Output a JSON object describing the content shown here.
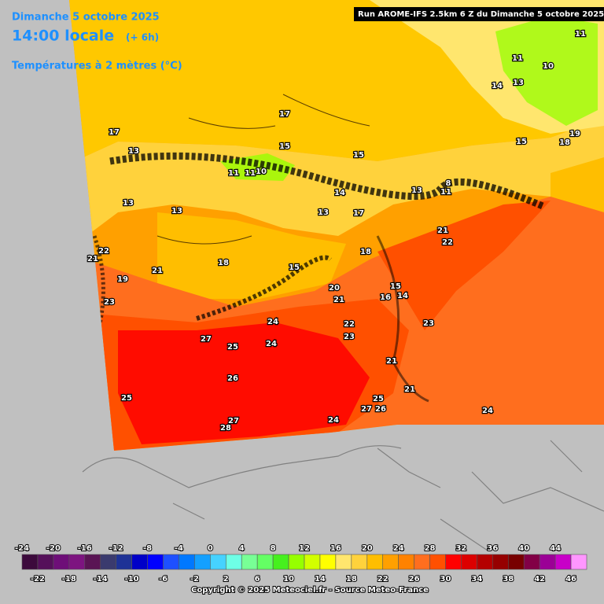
{
  "header": {
    "date": "Dimanche 5 octobre 2025",
    "time": "14:00 locale",
    "offset": "(+ 6h)",
    "parameter": "Températures à 2 mètres (°C)",
    "run": "Run AROME-IFS 2.5km 6 Z du Dimanche 5 octobre 2025"
  },
  "map_labels": [
    17,
    17,
    15,
    15,
    13,
    11,
    11,
    10,
    13,
    13,
    14,
    13,
    11,
    8,
    13,
    17,
    21,
    22,
    18,
    18,
    21,
    22,
    19,
    21,
    15,
    20,
    21,
    15,
    14,
    16,
    23,
    24,
    22,
    23,
    23,
    27,
    25,
    24,
    21,
    26,
    25,
    25,
    21,
    27,
    26,
    27,
    28,
    24,
    24,
    11,
    10,
    11,
    14,
    13,
    15,
    18,
    19
  ],
  "scale": {
    "top_labels": [
      -24,
      -20,
      -16,
      -12,
      -8,
      -4,
      0,
      4,
      8,
      12,
      16,
      20,
      24,
      28,
      32,
      36,
      40,
      44
    ],
    "bottom_labels": [
      -22,
      -18,
      -14,
      -10,
      -6,
      -2,
      2,
      6,
      10,
      14,
      18,
      22,
      26,
      30,
      34,
      38,
      42,
      46
    ],
    "colors": [
      "#3c0a3c",
      "#55105a",
      "#6e0e78",
      "#7d1480",
      "#5a1454",
      "#3a3a6e",
      "#1e3296",
      "#0000c8",
      "#0000ff",
      "#1e50ff",
      "#0078ff",
      "#14a0ff",
      "#46d2ff",
      "#6effe6",
      "#78ff96",
      "#64ff64",
      "#46f01e",
      "#96ff00",
      "#d2ff00",
      "#ffff00",
      "#ffe66e",
      "#ffd23c",
      "#ffbe00",
      "#ffa000",
      "#ff8200",
      "#ff6e1e",
      "#ff5000",
      "#ff0000",
      "#dc0000",
      "#b40000",
      "#960000",
      "#780000",
      "#820046",
      "#9b0096",
      "#c800c8",
      "#ff96ff"
    ]
  },
  "footer": {
    "copyright": "Copyright © 2025 Meteociel.fr - Source Meteo-France"
  }
}
